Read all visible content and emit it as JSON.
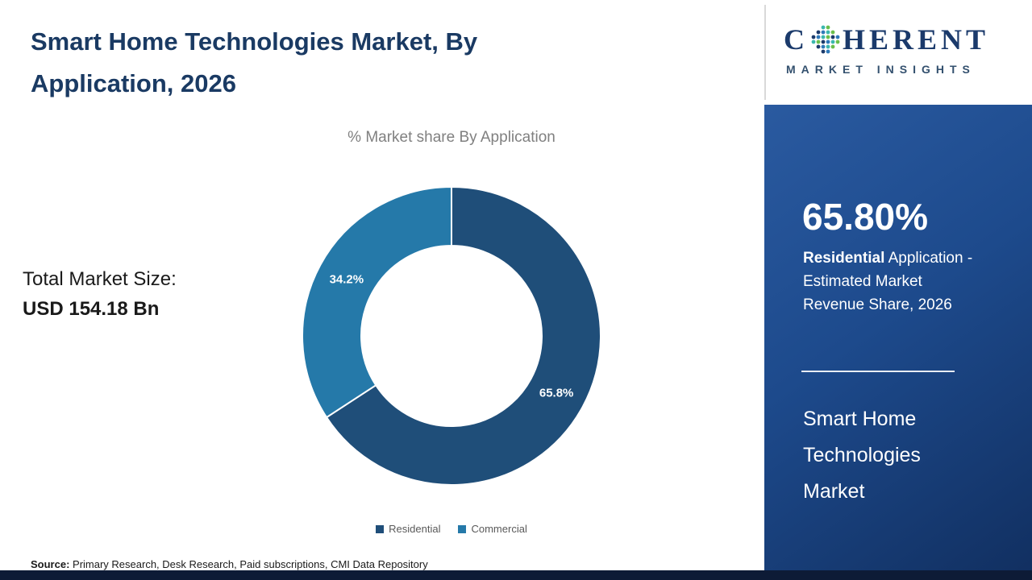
{
  "header": {
    "title": "Smart Home Technologies Market, By Application, 2026"
  },
  "chart_data": {
    "type": "pie",
    "donut": true,
    "title": "% Market share By Application",
    "categories": [
      "Residential",
      "Commercial"
    ],
    "values": [
      65.8,
      34.2
    ],
    "labels": [
      "65.8%",
      "34.2%"
    ],
    "colors": [
      "#1F4E79",
      "#2579A9"
    ],
    "legend_position": "bottom",
    "start_angle_deg": 0
  },
  "left_panel": {
    "total_label": "Total Market Size:",
    "total_value": "USD 154.18 Bn"
  },
  "side_panel": {
    "stat_value": "65.80%",
    "desc_bold": "Residential",
    "desc_line1_rest": " Application -",
    "desc_line2": "Estimated Market",
    "desc_line3": "Revenue Share, 2026",
    "market_line1": "Smart Home",
    "market_line2": "Technologies",
    "market_line3": "Market"
  },
  "logo": {
    "brand_left": "C",
    "brand_right": "HERENT",
    "tagline": "MARKET INSIGHTS"
  },
  "footer": {
    "source_label": "Source:",
    "source_text": " Primary Research, Desk Research, Paid subscriptions, CMI Data Repository"
  }
}
